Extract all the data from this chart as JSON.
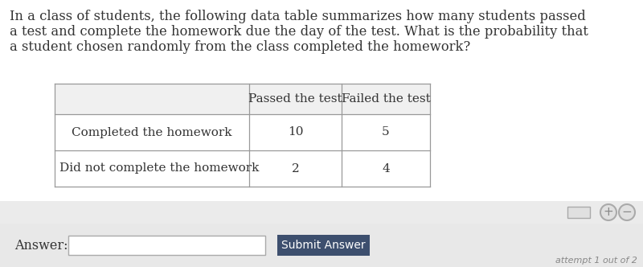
{
  "question_text_line1": "In a class of students, the following data table summarizes how many students passed",
  "question_text_line2": "a test and complete the homework due the day of the test. What is the probability that",
  "question_text_line3": "a student chosen randomly from the class completed the homework?",
  "col_headers": [
    "",
    "Passed the test",
    "Failed the test"
  ],
  "rows": [
    [
      "Completed the homework",
      "10",
      "5"
    ],
    [
      "Did not complete the homework",
      "2",
      "4"
    ]
  ],
  "answer_label": "Answer:",
  "submit_label": "Submit Answer",
  "attempt_text": "attempt 1 out of 2",
  "bg_color": "#ffffff",
  "table_header_bg": "#f0f0f0",
  "table_row_bg": "#ffffff",
  "table_border_color": "#999999",
  "bottom_panel_bg": "#e8e8e8",
  "submit_btn_color": "#3d4f6e",
  "submit_btn_text_color": "#ffffff",
  "text_color": "#333333",
  "attempt_color": "#888888",
  "question_fontsize": 11.8,
  "table_fontsize": 11.0
}
